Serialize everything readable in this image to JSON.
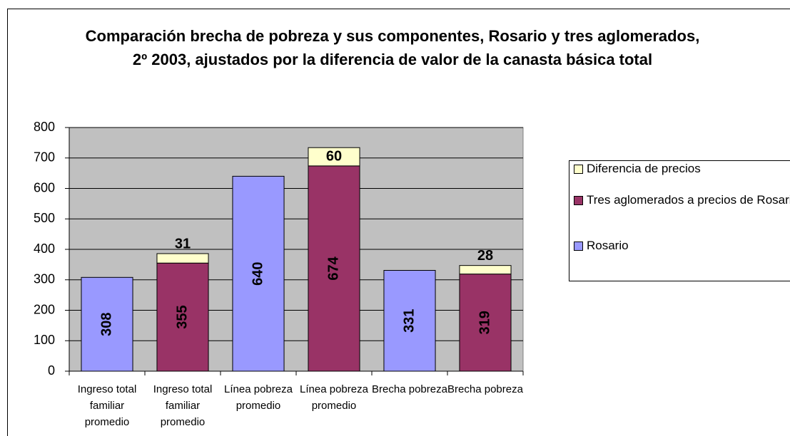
{
  "chart_data": {
    "type": "stacked_bar",
    "title": "Comparación brecha de pobreza y sus componentes, Rosario y tres aglomerados, 2º 2003, ajustados por la diferencia de valor de la canasta básica total",
    "categories": [
      "Ingreso total familiar promedio",
      "Ingreso total familiar promedio",
      "Línea pobreza promedio",
      "Línea pobreza promedio",
      "Brecha pobreza",
      "Brecha pobreza"
    ],
    "series": [
      {
        "name": "Rosario",
        "color": "#9999ff",
        "values": [
          308,
          null,
          640,
          null,
          331,
          null
        ]
      },
      {
        "name": "Tres aglomerados a precios de Rosario",
        "color": "#993366",
        "values": [
          null,
          355,
          null,
          674,
          null,
          319
        ]
      },
      {
        "name": "Diferencia de precios",
        "color": "#ffffcc",
        "values": [
          null,
          31,
          null,
          60,
          null,
          28
        ]
      }
    ],
    "ylim": [
      0,
      800
    ],
    "yticks": [
      0,
      100,
      200,
      300,
      400,
      500,
      600,
      700,
      800
    ],
    "grid": true,
    "plot_background": "#c0c0c0",
    "legend": "right"
  }
}
